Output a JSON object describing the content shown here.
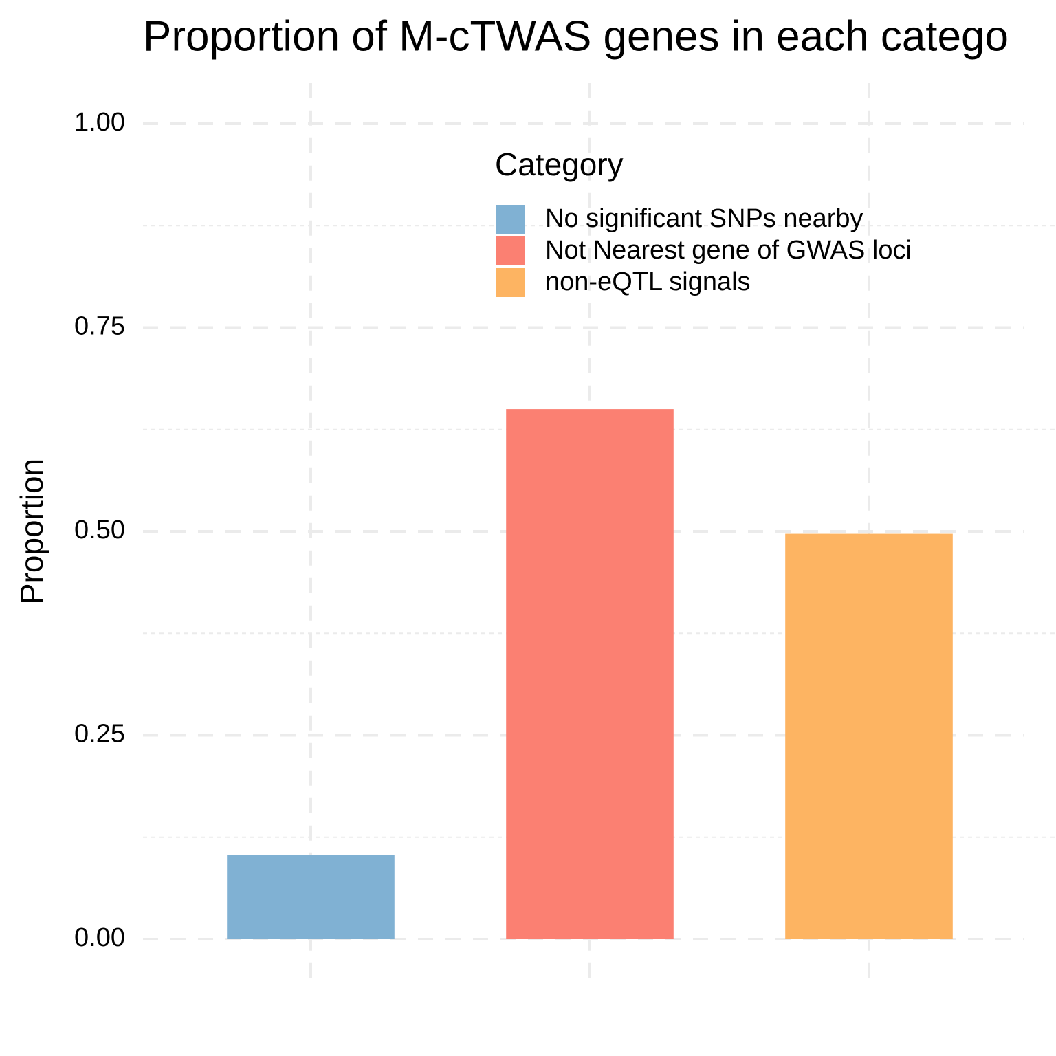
{
  "chart_data": {
    "type": "bar",
    "title": "Proportion of M-cTWAS genes in each catego",
    "y_label": "Proportion",
    "categories": [
      null,
      null,
      null
    ],
    "values": [
      0.103,
      0.65,
      0.497
    ],
    "colors": [
      "#80b1d3",
      "#fb8072",
      "#fdb462"
    ],
    "legend_title": "Category",
    "legend_labels": [
      "No significant SNPs nearby",
      "Not Nearest gene of GWAS loci",
      "non-eQTL signals"
    ],
    "ylim": [
      -0.05,
      1.05
    ],
    "yticks": [
      {
        "value": 0,
        "label": "0.00"
      },
      {
        "value": 0.25,
        "label": "0.25"
      },
      {
        "value": 0.5,
        "label": "0.50"
      },
      {
        "value": 0.75,
        "label": "0.75"
      },
      {
        "value": 1,
        "label": "1.00"
      }
    ],
    "grid": true
  }
}
